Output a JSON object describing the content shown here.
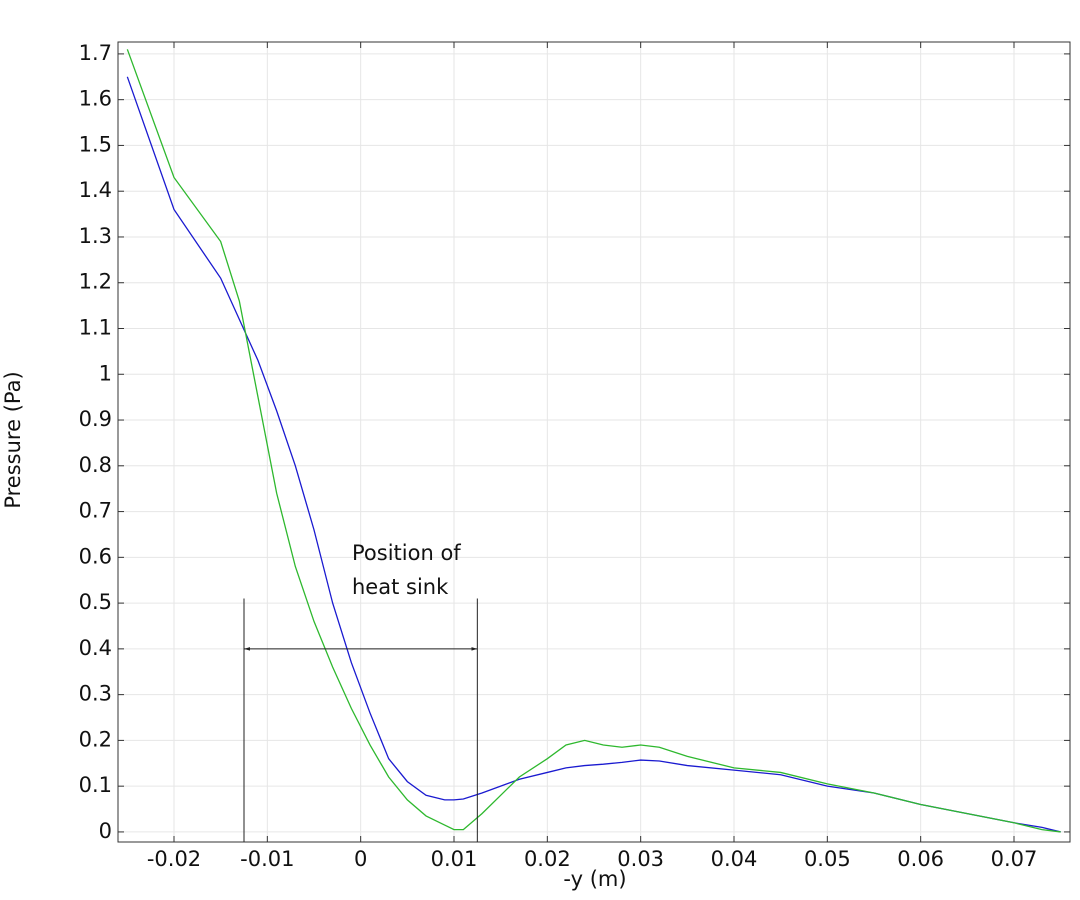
{
  "chart_data": {
    "type": "line",
    "x_label": "-y (m)",
    "y_label": "Pressure (Pa)",
    "x": [
      -0.025,
      -0.02,
      -0.015,
      -0.013,
      -0.011,
      -0.009,
      -0.007,
      -0.005,
      -0.003,
      -0.001,
      0.001,
      0.003,
      0.005,
      0.007,
      0.009,
      0.01,
      0.011,
      0.013,
      0.015,
      0.017,
      0.02,
      0.022,
      0.024,
      0.026,
      0.028,
      0.03,
      0.032,
      0.035,
      0.04,
      0.045,
      0.05,
      0.055,
      0.06,
      0.065,
      0.07,
      0.073,
      0.075
    ],
    "series": [
      {
        "color": "#1a1ad0",
        "values": [
          1.65,
          1.36,
          1.21,
          1.12,
          1.03,
          0.92,
          0.8,
          0.66,
          0.5,
          0.37,
          0.26,
          0.16,
          0.11,
          0.08,
          0.07,
          0.07,
          0.072,
          0.085,
          0.1,
          0.115,
          0.13,
          0.14,
          0.145,
          0.148,
          0.152,
          0.157,
          0.155,
          0.145,
          0.135,
          0.125,
          0.1,
          0.085,
          0.06,
          0.04,
          0.02,
          0.01,
          0.0
        ]
      },
      {
        "color": "#2eb82e",
        "values": [
          1.71,
          1.43,
          1.29,
          1.16,
          0.95,
          0.74,
          0.58,
          0.46,
          0.36,
          0.27,
          0.19,
          0.12,
          0.07,
          0.035,
          0.015,
          0.005,
          0.005,
          0.04,
          0.08,
          0.12,
          0.16,
          0.19,
          0.2,
          0.19,
          0.185,
          0.19,
          0.185,
          0.165,
          0.14,
          0.13,
          0.105,
          0.085,
          0.06,
          0.04,
          0.02,
          0.005,
          0.0
        ]
      }
    ],
    "xlim": [
      -0.026,
      0.076
    ],
    "ylim": [
      -0.022,
      1.726
    ],
    "xticks": [
      -0.02,
      -0.01,
      0,
      0.01,
      0.02,
      0.03,
      0.04,
      0.05,
      0.06,
      0.07
    ],
    "yticks": [
      0,
      0.1,
      0.2,
      0.3,
      0.4,
      0.5,
      0.6,
      0.7,
      0.8,
      0.9,
      1,
      1.1,
      1.2,
      1.3,
      1.4,
      1.5,
      1.6,
      1.7
    ],
    "grid": true,
    "annotation": {
      "text_lines": [
        "Position of",
        "heat sink"
      ],
      "x_start": -0.0125,
      "x_end": 0.0125,
      "arrow_y": 0.4,
      "line_top": 0.51
    }
  }
}
